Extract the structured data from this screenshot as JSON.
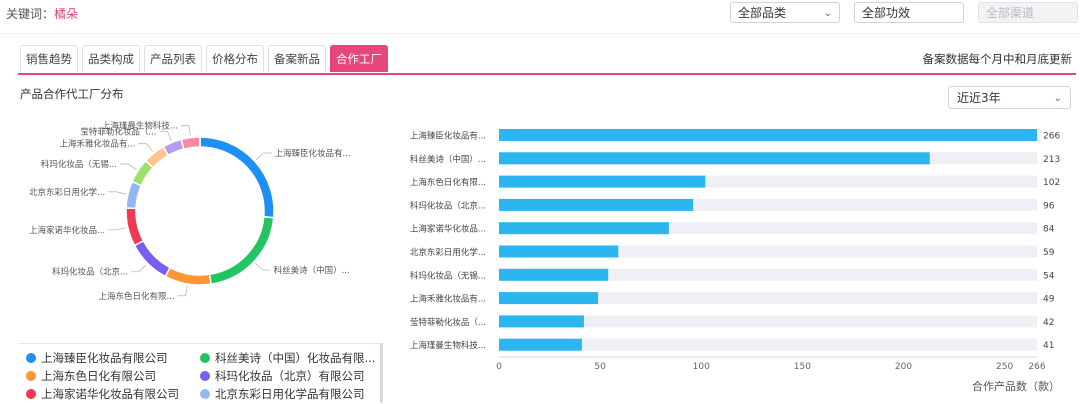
{
  "topbar": {
    "keyword_label": "关键词：",
    "keyword_value": "橘朵",
    "category_select": "全部品类",
    "effect_select": "全部功效",
    "channel_select": "全部渠道"
  },
  "tabs": [
    {
      "label": "销售趋势",
      "active": false
    },
    {
      "label": "品类构成",
      "active": false
    },
    {
      "label": "产品列表",
      "active": false
    },
    {
      "label": "价格分布",
      "active": false
    },
    {
      "label": "备案新品",
      "active": false
    },
    {
      "label": "合作工厂",
      "active": true
    }
  ],
  "note": "备案数据每个月中和月底更新",
  "section_title": "产品合作代工厂分布",
  "period_select": "近近3年",
  "chart_data": [
    {
      "type": "pie",
      "variant": "donut",
      "categories": [
        "上海臻臣化妆品有...",
        "科丝美诗（中国）...",
        "上海东色日化有限...",
        "科玛化妆品（北京...",
        "上海家诺华化妆品...",
        "北京东彩日用化学...",
        "科玛化妆品（无锡...",
        "上海禾雅化妆品有...",
        "莹特菲勒化妆品（...",
        "上海瑾曼生物科技..."
      ],
      "values": [
        266,
        213,
        102,
        96,
        84,
        59,
        54,
        49,
        42,
        41
      ],
      "colors": [
        "#1e8ff5",
        "#23c560",
        "#ff9533",
        "#7a5cf0",
        "#f03a54",
        "#8fb9f0",
        "#9ee06a",
        "#ffc48a",
        "#b79cf5",
        "#f58aa0"
      ]
    },
    {
      "type": "bar",
      "orientation": "horizontal",
      "categories": [
        "上海臻臣化妆品有...",
        "科丝美诗（中国）...",
        "上海东色日化有限...",
        "科玛化妆品（北京...",
        "上海家诺华化妆品...",
        "北京东彩日用化学...",
        "科玛化妆品（无锡...",
        "上海禾雅化妆品有...",
        "莹特菲勒化妆品（...",
        "上海瑾曼生物科技..."
      ],
      "values": [
        266,
        213,
        102,
        96,
        84,
        59,
        54,
        49,
        42,
        41
      ],
      "xlim": [
        0,
        266
      ],
      "xticks": [
        "0",
        "50",
        "100",
        "150",
        "200",
        "250",
        "266"
      ],
      "xlabel": "合作产品数（款）",
      "color": "#2bb6ef",
      "track_color": "#eef0f5"
    }
  ],
  "legend": [
    {
      "label": "上海臻臣化妆品有限公司",
      "color": "#1e8ff5"
    },
    {
      "label": "科丝美诗（中国）化妆品有限...",
      "color": "#23c560"
    },
    {
      "label": "上海东色日化有限公司",
      "color": "#ff9533"
    },
    {
      "label": "科玛化妆品（北京）有限公司",
      "color": "#7a5cf0"
    },
    {
      "label": "上海家诺华化妆品有限公司",
      "color": "#f03a54"
    },
    {
      "label": "北京东彩日用化学品有限公司",
      "color": "#8fb9f0"
    }
  ]
}
